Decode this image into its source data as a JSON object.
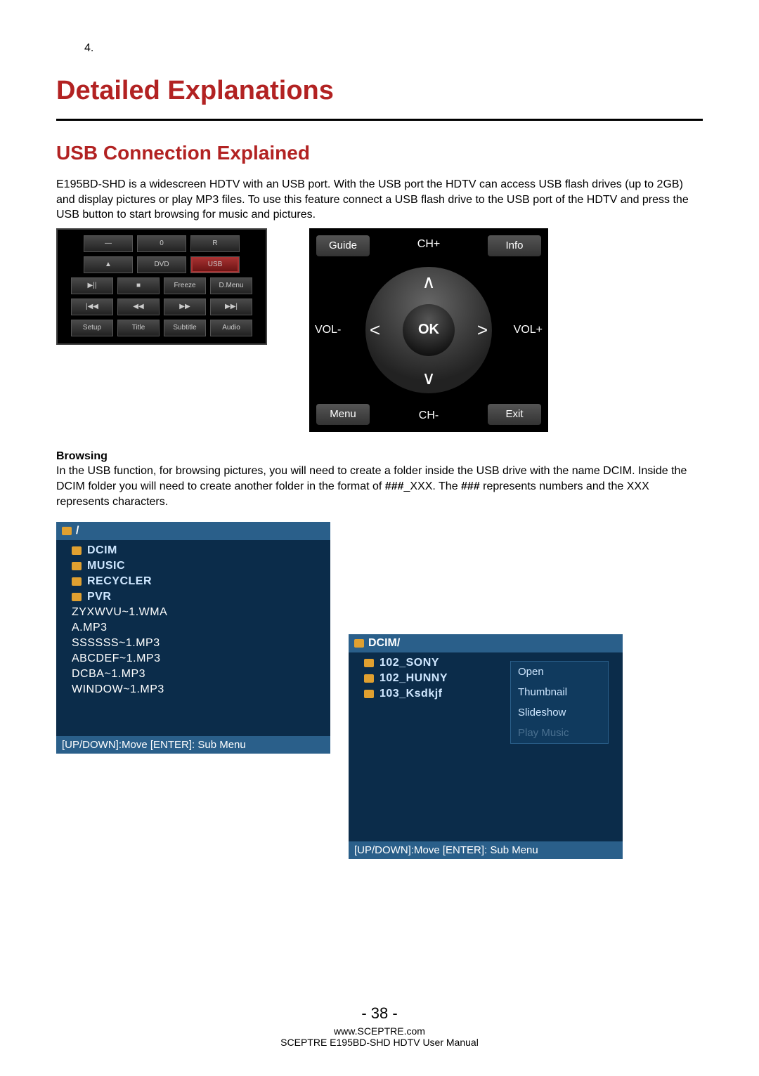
{
  "page_number_top": "4.",
  "section_title": "Detailed Explanations",
  "subsection_title": "USB Connection Explained",
  "intro_text": "E195BD-SHD is a widescreen HDTV with an USB port.  With the USB port the HDTV can access USB flash drives (up to 2GB) and display pictures or play MP3 files.  To use this feature connect a USB flash drive to the USB port of the HDTV and press the USB button to start browsing for music and pictures.",
  "remote": {
    "row1": [
      "—",
      "0",
      "R"
    ],
    "row2": [
      "▲",
      "DVD",
      "USB"
    ],
    "row3": [
      "▶||",
      "■",
      "Freeze",
      "D.Menu"
    ],
    "row4": [
      "|◀◀",
      "◀◀",
      "▶▶",
      "▶▶|"
    ],
    "row5": [
      "Setup",
      "Title",
      "Subtitle",
      "Audio"
    ]
  },
  "navpad": {
    "guide": "Guide",
    "info": "Info",
    "menu": "Menu",
    "exit": "Exit",
    "ch_plus": "CH+",
    "ch_minus": "CH-",
    "vol_minus": "VOL-",
    "vol_plus": "VOL+",
    "ok": "OK"
  },
  "browsing_heading": "Browsing",
  "browsing_text_pre": "In the USB function, for browsing pictures, you will need to create a folder inside the USB drive with the name DCIM.  Inside the DCIM folder you will need to create another folder in the format of ",
  "browsing_bold1": "###",
  "browsing_text_mid": "_XXX.  The ",
  "browsing_bold2": "###",
  "browsing_text_post": " represents numbers and the XXX represents characters.",
  "fb1": {
    "path": "/",
    "items": [
      {
        "type": "folder",
        "label": "DCIM"
      },
      {
        "type": "folder",
        "label": "MUSIC"
      },
      {
        "type": "folder",
        "label": "RECYCLER"
      },
      {
        "type": "folder",
        "label": "PVR"
      },
      {
        "type": "file",
        "label": "ZYXWVU~1.WMA"
      },
      {
        "type": "file",
        "label": "A.MP3"
      },
      {
        "type": "file",
        "label": "SSSSSS~1.MP3"
      },
      {
        "type": "file",
        "label": "ABCDEF~1.MP3"
      },
      {
        "type": "file",
        "label": "DCBA~1.MP3"
      },
      {
        "type": "file",
        "label": "WINDOW~1.MP3"
      }
    ],
    "footer": "[UP/DOWN]:Move [ENTER]: Sub Menu"
  },
  "fb2": {
    "path": "DCIM/",
    "items": [
      {
        "type": "folder",
        "label": "102_SONY",
        "selected": true
      },
      {
        "type": "folder",
        "label": "102_HUNNY"
      },
      {
        "type": "folder",
        "label": "103_Ksdkjf"
      }
    ],
    "context_menu": [
      "Open",
      "Thumbnail",
      "Slideshow",
      "Play Music"
    ],
    "footer": "[UP/DOWN]:Move [ENTER]: Sub Menu"
  },
  "footer": {
    "page": "- 38 -",
    "url": "www.SCEPTRE.com",
    "manual": "SCEPTRE E195BD-SHD HDTV User Manual"
  }
}
